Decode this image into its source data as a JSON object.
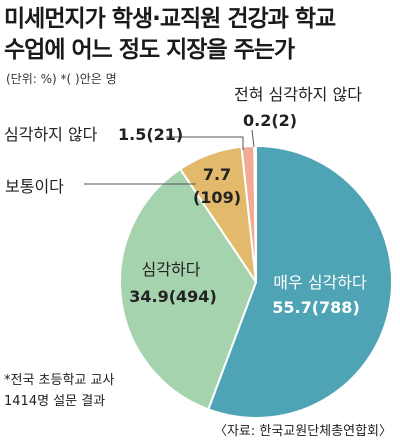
{
  "title_lines": [
    "미세먼지가 학생·교직원 건강과 학교",
    "수업에 어느 정도 지장을 주는가"
  ],
  "unit_note": "(단위: %)   *( )안은 명",
  "footnote_lines": [
    "*전국 초등학교 교사",
    "1414명 설문 결과"
  ],
  "source": "〈자료: 한국교원단체총연합회〉",
  "colors": {
    "very_serious": "#4ea3b4",
    "serious": "#a5d3ad",
    "normal": "#e3b96c",
    "not_serious": "#f1aa93",
    "not_at_all": "#d8d8d8"
  },
  "chart_data": {
    "type": "pie",
    "title": "미세먼지가 학생·교직원 건강과 학교 수업에 어느 정도 지장을 주는가",
    "unit": "%",
    "start_angle_deg": 0,
    "direction": "clockwise",
    "slices": [
      {
        "label": "매우 심각하다",
        "value": 55.7,
        "count": 788,
        "value_text": "55.7(788)",
        "color": "#4ea3b4"
      },
      {
        "label": "심각하다",
        "value": 34.9,
        "count": 494,
        "value_text": "34.9(494)",
        "color": "#a5d3ad"
      },
      {
        "label": "보통이다",
        "value": 7.7,
        "count": 109,
        "value_text_line1": "7.7",
        "value_text_line2": "(109)",
        "color": "#e3b96c"
      },
      {
        "label": "심각하지 않다",
        "value": 1.5,
        "count": 21,
        "value_text": "1.5(21)",
        "color": "#f1aa93"
      },
      {
        "label": "전혀 심각하지 않다",
        "value": 0.2,
        "count": 2,
        "value_text": "0.2(2)",
        "color": "#d8d8d8"
      }
    ]
  }
}
